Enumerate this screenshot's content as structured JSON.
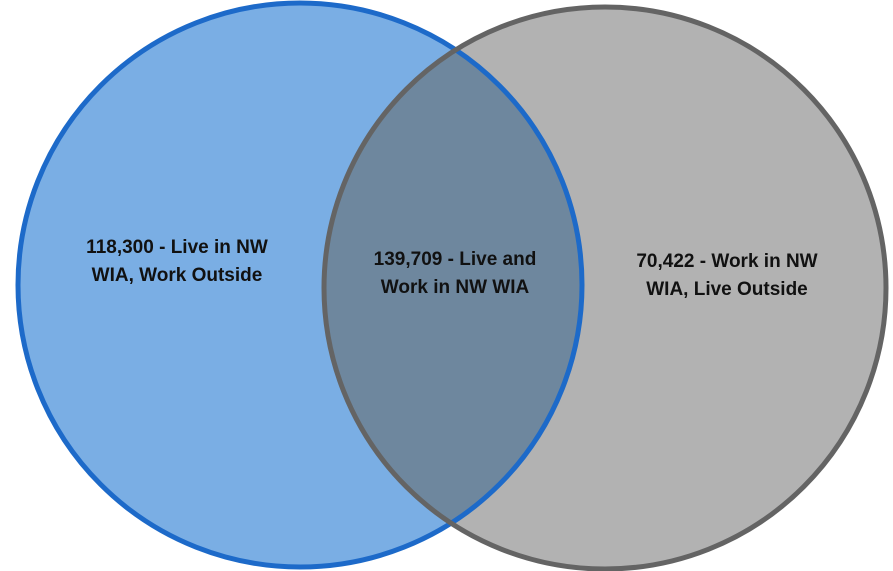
{
  "diagram": {
    "type": "venn",
    "left_circle": {
      "color_fill": "#7aaee4",
      "color_stroke": "#1d6ac9",
      "label_line1": "118,300 - Live in NW",
      "label_line2": "WIA, Work Outside"
    },
    "right_circle": {
      "color_fill": "#b2b2b2",
      "color_stroke": "#646464",
      "label_line1": "70,422 - Work in NW",
      "label_line2": "WIA, Live Outside"
    },
    "overlap": {
      "color_fill": "#6e879e",
      "label_line1": "139,709 - Live and",
      "label_line2": "Work in NW WIA"
    }
  }
}
